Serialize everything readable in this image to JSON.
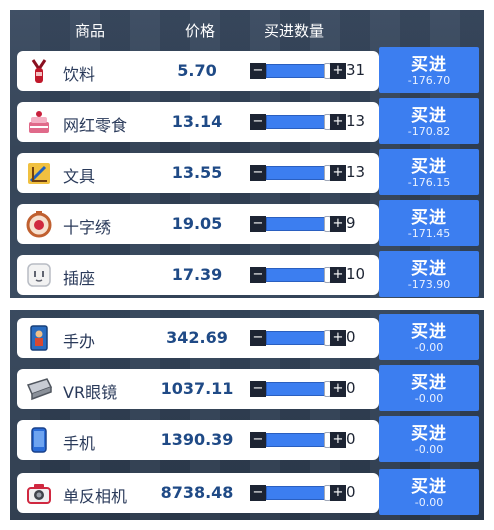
{
  "header": {
    "col_item": "商品",
    "col_price": "价格",
    "col_qty": "买进数量"
  },
  "buy_label": "买进",
  "items": [
    {
      "icon": "drink-icon",
      "name": "饮料",
      "price": "5.70",
      "qty": "31",
      "cost": "-176.70"
    },
    {
      "icon": "cake-snack-icon",
      "name": "网红零食",
      "price": "13.14",
      "qty": "13",
      "cost": "-170.82"
    },
    {
      "icon": "stationery-icon",
      "name": "文具",
      "price": "13.55",
      "qty": "13",
      "cost": "-176.15"
    },
    {
      "icon": "embroidery-hoop-icon",
      "name": "十字绣",
      "price": "19.05",
      "qty": "9",
      "cost": "-171.45"
    },
    {
      "icon": "power-socket-icon",
      "name": "插座",
      "price": "17.39",
      "qty": "10",
      "cost": "-173.90"
    },
    {
      "icon": "figurine-card-icon",
      "name": "手办",
      "price": "342.69",
      "qty": "0",
      "cost": "-0.00"
    },
    {
      "icon": "vr-headset-icon",
      "name": "VR眼镜",
      "price": "1037.11",
      "qty": "0",
      "cost": "-0.00"
    },
    {
      "icon": "smartphone-icon",
      "name": "手机",
      "price": "1390.39",
      "qty": "0",
      "cost": "-0.00"
    },
    {
      "icon": "dslr-camera-icon",
      "name": "单反相机",
      "price": "8738.48",
      "qty": "0",
      "cost": "-0.00"
    }
  ]
}
